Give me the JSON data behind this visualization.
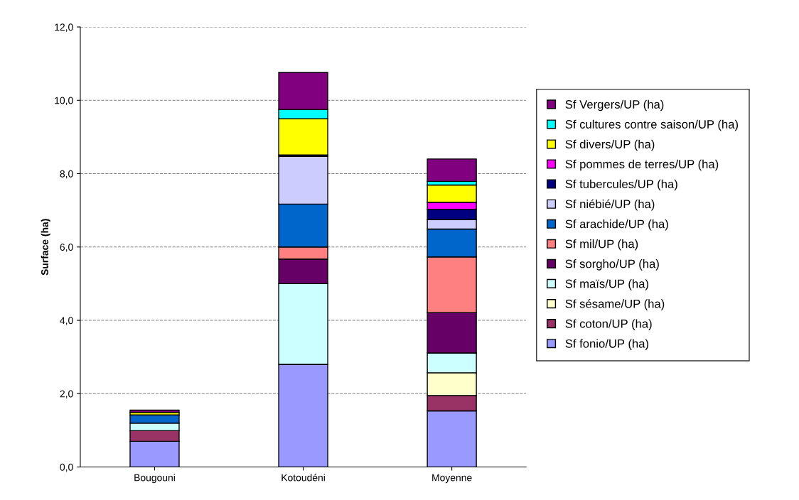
{
  "chart_data": {
    "type": "bar",
    "stacked": true,
    "ylabel": "Surface (ha)",
    "categories": [
      "Bougouni",
      "Kotoudéni",
      "Moyenne"
    ],
    "ylim": [
      0,
      12
    ],
    "yticks": [
      {
        "value": 0,
        "label": "0,0"
      },
      {
        "value": 2,
        "label": "2,0"
      },
      {
        "value": 4,
        "label": "4,0"
      },
      {
        "value": 6,
        "label": "6,0"
      },
      {
        "value": 8,
        "label": "8,0"
      },
      {
        "value": 10,
        "label": "10,0"
      },
      {
        "value": 12,
        "label": "12,0"
      }
    ],
    "grid": "y",
    "legend": "right",
    "series": [
      {
        "name": "Sf fonio/UP (ha)",
        "color": "#9999ff",
        "values": [
          0.7,
          2.8,
          1.53
        ]
      },
      {
        "name": "Sf coton/UP (ha)",
        "color": "#993366",
        "values": [
          0.29,
          0,
          0.42
        ]
      },
      {
        "name": "Sf sésame/UP (ha)",
        "color": "#ffffcc",
        "values": [
          0,
          0,
          0.62
        ]
      },
      {
        "name": "Sf maïs/UP (ha)",
        "color": "#ccffff",
        "values": [
          0.21,
          2.2,
          0.54
        ]
      },
      {
        "name": "Sf sorgho/UP (ha)",
        "color": "#660066",
        "values": [
          0,
          0.67,
          1.1
        ]
      },
      {
        "name": "Sf mil/UP (ha)",
        "color": "#ff8080",
        "values": [
          0,
          0.33,
          1.52
        ]
      },
      {
        "name": "Sf arachide/UP (ha)",
        "color": "#0066cc",
        "values": [
          0.22,
          1.17,
          0.76
        ]
      },
      {
        "name": "Sf niébié/UP (ha)",
        "color": "#ccccff",
        "values": [
          0,
          1.3,
          0.26
        ]
      },
      {
        "name": "Sf tubercules/UP (ha)",
        "color": "#000080",
        "values": [
          0,
          0.04,
          0.28
        ]
      },
      {
        "name": "Sf pommes de terres/UP (ha)",
        "color": "#ff00ff",
        "values": [
          0,
          0,
          0.19
        ]
      },
      {
        "name": "Sf divers/UP (ha)",
        "color": "#ffff00",
        "values": [
          0.07,
          0.99,
          0.47
        ]
      },
      {
        "name": "Sf cultures contre saison/UP (ha)",
        "color": "#00ffff",
        "values": [
          0,
          0.25,
          0.1
        ]
      },
      {
        "name": "Sf Vergers/UP (ha)",
        "color": "#800080",
        "values": [
          0.06,
          1.01,
          0.61
        ]
      }
    ]
  }
}
